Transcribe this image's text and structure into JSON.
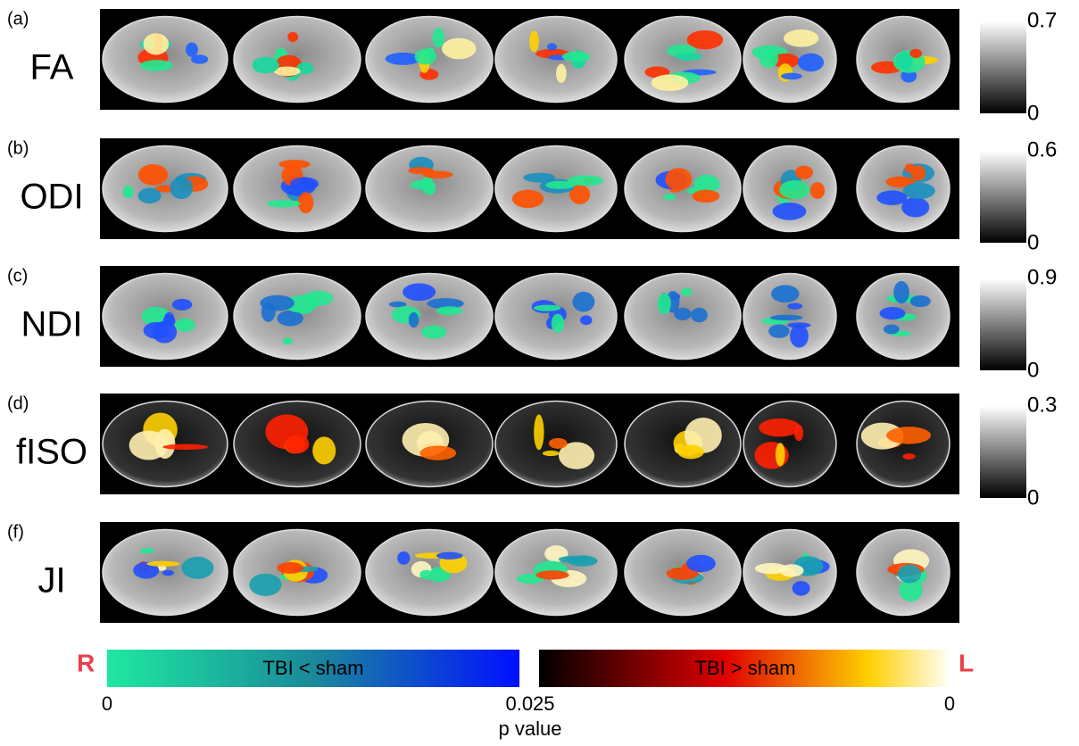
{
  "panels": [
    {
      "label": "(a)",
      "metric": "FA",
      "colorbar": {
        "max": "0.7",
        "min": "0"
      }
    },
    {
      "label": "(b)",
      "metric": "ODI",
      "colorbar": {
        "max": "0.6",
        "min": "0"
      }
    },
    {
      "label": "(c)",
      "metric": "NDI",
      "colorbar": {
        "max": "0.9",
        "min": "0"
      }
    },
    {
      "label": "(d)",
      "metric": "fISO",
      "colorbar": {
        "max": "0.3",
        "min": "0"
      }
    },
    {
      "label": "(f)",
      "metric": "JI"
    }
  ],
  "legend": {
    "left_side": "R",
    "right_side": "L",
    "negative_label": "TBI < sham",
    "positive_label": "TBI > sham",
    "ticks": [
      "0",
      "0.025",
      "0"
    ],
    "axis_title": "p value"
  }
}
